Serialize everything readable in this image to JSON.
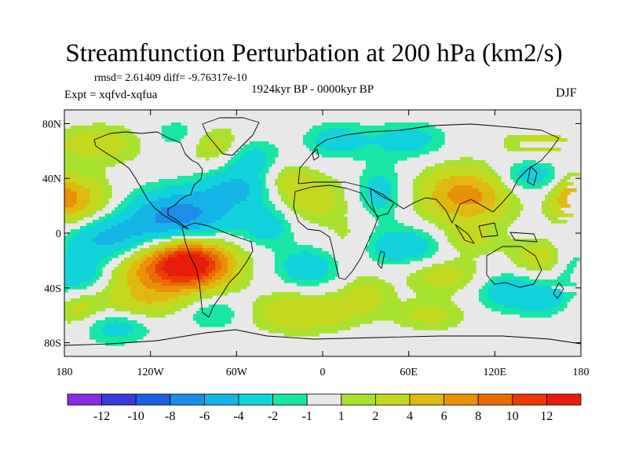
{
  "chart_data": {
    "type": "heatmap",
    "title": "Streamfunction Perturbation at 200 hPa (km2/s)",
    "stats_text": "rmsd= 2.61409 diff= -9.76317e-10",
    "experiment_text": "Expt = xqfvd-xqfua",
    "period_text": "1924kyr BP - 0000kyr BP",
    "season_text": "DJF",
    "xlabel": "",
    "ylabel": "",
    "xlim": [
      -180,
      180
    ],
    "ylim": [
      -90,
      90
    ],
    "x_ticks": [
      {
        "value": -180,
        "label": "180"
      },
      {
        "value": -120,
        "label": "120W"
      },
      {
        "value": -60,
        "label": "60W"
      },
      {
        "value": 0,
        "label": "0"
      },
      {
        "value": 60,
        "label": "60E"
      },
      {
        "value": 120,
        "label": "120E"
      },
      {
        "value": 180,
        "label": "180"
      }
    ],
    "y_ticks": [
      {
        "value": 80,
        "label": "80N"
      },
      {
        "value": 40,
        "label": "40N"
      },
      {
        "value": 0,
        "label": "0"
      },
      {
        "value": -40,
        "label": "40S"
      },
      {
        "value": -80,
        "label": "80S"
      }
    ],
    "colorbar": {
      "labels": [
        "-12",
        "-10",
        "-8",
        "-6",
        "-4",
        "-2",
        "-1",
        "1",
        "2",
        "4",
        "6",
        "8",
        "10",
        "12"
      ],
      "colors": [
        "#8a2be2",
        "#3a3ad8",
        "#1e5fe0",
        "#1e8ce8",
        "#14b4e6",
        "#12d2dc",
        "#18e6a4",
        "#e8e8e8",
        "#a8e22e",
        "#c4d820",
        "#e0b810",
        "#e89008",
        "#ea6a04",
        "#ec3a04",
        "#e81c0c"
      ]
    },
    "features": [
      {
        "lon": -92,
        "lat": -22,
        "amp": 13,
        "slon": 20,
        "slat": 12
      },
      {
        "lon": -118,
        "lat": -30,
        "amp": 5,
        "slon": 26,
        "slat": 14
      },
      {
        "lon": -168,
        "lat": 25,
        "amp": 4,
        "slon": 16,
        "slat": 12
      },
      {
        "lon": -172,
        "lat": -55,
        "amp": 3,
        "slon": 14,
        "slat": 10
      },
      {
        "lon": -100,
        "lat": 12,
        "amp": -7,
        "slon": 26,
        "slat": 14
      },
      {
        "lon": -60,
        "lat": 32,
        "amp": -4,
        "slon": 18,
        "slat": 10
      },
      {
        "lon": -38,
        "lat": 5,
        "amp": -3,
        "slon": 12,
        "slat": 10
      },
      {
        "lon": -150,
        "lat": -5,
        "amp": -4.5,
        "slon": 22,
        "slat": 12
      },
      {
        "lon": -170,
        "lat": -30,
        "amp": -4,
        "slon": 16,
        "slat": 10
      },
      {
        "lon": -145,
        "lat": -68,
        "amp": -3,
        "slon": 18,
        "slat": 9
      },
      {
        "lon": -125,
        "lat": -52,
        "amp": 2.5,
        "slon": 18,
        "slat": 8
      },
      {
        "lon": -75,
        "lat": -58,
        "amp": -2.5,
        "slon": 16,
        "slat": 9
      },
      {
        "lon": -15,
        "lat": -58,
        "amp": 4,
        "slon": 26,
        "slat": 10
      },
      {
        "lon": -155,
        "lat": 65,
        "amp": 3,
        "slon": 22,
        "slat": 10
      },
      {
        "lon": -100,
        "lat": 72,
        "amp": -2,
        "slon": 16,
        "slat": 8
      },
      {
        "lon": -75,
        "lat": 65,
        "amp": 3,
        "slon": 14,
        "slat": 10
      },
      {
        "lon": -50,
        "lat": 55,
        "amp": -3,
        "slon": 14,
        "slat": 10
      },
      {
        "lon": -25,
        "lat": 38,
        "amp": 2.5,
        "slon": 12,
        "slat": 10
      },
      {
        "lon": 10,
        "lat": 68,
        "amp": -3,
        "slon": 16,
        "slat": 9
      },
      {
        "lon": 60,
        "lat": 68,
        "amp": -3,
        "slon": 18,
        "slat": 9
      },
      {
        "lon": 150,
        "lat": 65,
        "amp": 3,
        "slon": 16,
        "slat": 8
      },
      {
        "lon": -5,
        "lat": 25,
        "amp": 3,
        "slon": 16,
        "slat": 12
      },
      {
        "lon": 40,
        "lat": 30,
        "amp": -3,
        "slon": 12,
        "slat": 14
      },
      {
        "lon": 100,
        "lat": 28,
        "amp": 7,
        "slon": 22,
        "slat": 14
      },
      {
        "lon": 175,
        "lat": 25,
        "amp": 5,
        "slon": 12,
        "slat": 12
      },
      {
        "lon": 145,
        "lat": 42,
        "amp": -3.5,
        "slon": 18,
        "slat": 10
      },
      {
        "lon": -10,
        "lat": -25,
        "amp": -3.5,
        "slon": 16,
        "slat": 10
      },
      {
        "lon": 55,
        "lat": -10,
        "amp": -4,
        "slon": 28,
        "slat": 10
      },
      {
        "lon": 20,
        "lat": -8,
        "amp": 2.5,
        "slon": 14,
        "slat": 12
      },
      {
        "lon": 85,
        "lat": -30,
        "amp": 3,
        "slon": 20,
        "slat": 10
      },
      {
        "lon": 100,
        "lat": -5,
        "amp": 3,
        "slon": 16,
        "slat": 8
      },
      {
        "lon": 130,
        "lat": -42,
        "amp": -3.5,
        "slon": 18,
        "slat": 10
      },
      {
        "lon": 150,
        "lat": -18,
        "amp": 3,
        "slon": 14,
        "slat": 10
      },
      {
        "lon": 160,
        "lat": -50,
        "amp": -2.5,
        "slon": 16,
        "slat": 8
      },
      {
        "lon": 75,
        "lat": -60,
        "amp": 2.5,
        "slon": 18,
        "slat": 8
      },
      {
        "lon": 30,
        "lat": -45,
        "amp": 2.5,
        "slon": 12,
        "slat": 10
      }
    ]
  }
}
